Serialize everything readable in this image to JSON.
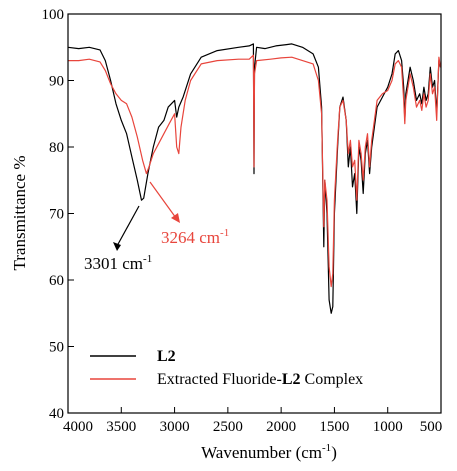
{
  "chart_data": {
    "type": "line",
    "xlabel": "Wavenumber (cm",
    "xlabel_sup": "-1",
    "xlabel_suffix": ")",
    "ylabel": "Transmittance %",
    "xlim": [
      4000,
      500
    ],
    "ylim": [
      40,
      100
    ],
    "x_reversed": true,
    "xticks": [
      4000,
      3500,
      3000,
      2500,
      2000,
      1500,
      1000,
      500
    ],
    "xtick_labels": [
      "4000",
      "3500",
      "3000",
      "2500",
      "2000",
      "1500",
      "1000",
      "500"
    ],
    "yticks": [
      40,
      50,
      60,
      70,
      80,
      90,
      100
    ],
    "ytick_labels": [
      "40",
      "50",
      "60",
      "70",
      "80",
      "90",
      "100"
    ],
    "grid": false,
    "legend_position": "bottom-left",
    "legend": [
      {
        "name_plain": "",
        "name_bold": "L2",
        "name_suffix": "",
        "color": "#000000"
      },
      {
        "name_plain": "Extracted Fluoride-",
        "name_bold": "L2",
        "name_suffix": " Complex",
        "color": "#e8453c"
      }
    ],
    "annotations": [
      {
        "text": "3301 cm",
        "sup": "-1",
        "color": "#000000",
        "point": [
          3301,
          72
        ]
      },
      {
        "text": "3264 cm",
        "sup": "-1",
        "color": "#e8453c",
        "point": [
          3264,
          76
        ]
      }
    ],
    "series": [
      {
        "color": "#000000",
        "points": [
          [
            4000,
            95
          ],
          [
            3900,
            94.8
          ],
          [
            3800,
            95
          ],
          [
            3700,
            94.6
          ],
          [
            3650,
            93
          ],
          [
            3600,
            90
          ],
          [
            3550,
            86.5
          ],
          [
            3500,
            84
          ],
          [
            3450,
            82
          ],
          [
            3400,
            78.5
          ],
          [
            3350,
            75
          ],
          [
            3310,
            72
          ],
          [
            3290,
            72.3
          ],
          [
            3250,
            76
          ],
          [
            3200,
            80
          ],
          [
            3150,
            83
          ],
          [
            3100,
            84
          ],
          [
            3060,
            86
          ],
          [
            3000,
            87
          ],
          [
            2980,
            84.5
          ],
          [
            2960,
            86
          ],
          [
            2920,
            87.5
          ],
          [
            2850,
            91
          ],
          [
            2750,
            93.5
          ],
          [
            2600,
            94.5
          ],
          [
            2400,
            95
          ],
          [
            2300,
            95.2
          ],
          [
            2260,
            95.5
          ],
          [
            2255,
            76
          ],
          [
            2250,
            92
          ],
          [
            2230,
            95
          ],
          [
            2150,
            94.8
          ],
          [
            2050,
            95.2
          ],
          [
            1950,
            95.4
          ],
          [
            1900,
            95.5
          ],
          [
            1800,
            95
          ],
          [
            1700,
            94
          ],
          [
            1650,
            92
          ],
          [
            1620,
            86
          ],
          [
            1600,
            65
          ],
          [
            1590,
            75
          ],
          [
            1570,
            70
          ],
          [
            1550,
            57
          ],
          [
            1530,
            55
          ],
          [
            1515,
            56
          ],
          [
            1500,
            70
          ],
          [
            1470,
            80
          ],
          [
            1450,
            86
          ],
          [
            1420,
            87.5
          ],
          [
            1390,
            84
          ],
          [
            1370,
            77
          ],
          [
            1350,
            80
          ],
          [
            1330,
            74
          ],
          [
            1310,
            76
          ],
          [
            1290,
            70
          ],
          [
            1270,
            80
          ],
          [
            1250,
            78
          ],
          [
            1230,
            73
          ],
          [
            1210,
            79
          ],
          [
            1190,
            81
          ],
          [
            1170,
            76
          ],
          [
            1150,
            80
          ],
          [
            1100,
            86
          ],
          [
            1050,
            87.5
          ],
          [
            1000,
            89
          ],
          [
            960,
            91
          ],
          [
            930,
            94
          ],
          [
            900,
            94.5
          ],
          [
            870,
            93
          ],
          [
            850,
            89
          ],
          [
            840,
            84
          ],
          [
            830,
            88
          ],
          [
            810,
            90
          ],
          [
            790,
            92
          ],
          [
            760,
            90
          ],
          [
            730,
            87
          ],
          [
            700,
            88
          ],
          [
            680,
            86.5
          ],
          [
            660,
            89
          ],
          [
            640,
            87
          ],
          [
            620,
            88
          ],
          [
            600,
            92
          ],
          [
            580,
            89
          ],
          [
            560,
            90
          ],
          [
            540,
            85
          ],
          [
            520,
            93
          ],
          [
            505,
            92
          ]
        ]
      },
      {
        "color": "#e8453c",
        "points": [
          [
            4000,
            93
          ],
          [
            3900,
            93
          ],
          [
            3800,
            93.2
          ],
          [
            3700,
            92.8
          ],
          [
            3650,
            91.5
          ],
          [
            3600,
            89.5
          ],
          [
            3550,
            88
          ],
          [
            3500,
            87
          ],
          [
            3450,
            86.5
          ],
          [
            3400,
            84.5
          ],
          [
            3350,
            81.5
          ],
          [
            3300,
            78
          ],
          [
            3264,
            76
          ],
          [
            3240,
            77
          ],
          [
            3200,
            79
          ],
          [
            3150,
            80.5
          ],
          [
            3100,
            82
          ],
          [
            3050,
            83.5
          ],
          [
            3000,
            85
          ],
          [
            2980,
            80
          ],
          [
            2960,
            79
          ],
          [
            2940,
            83
          ],
          [
            2900,
            87
          ],
          [
            2850,
            90
          ],
          [
            2750,
            92.5
          ],
          [
            2600,
            93
          ],
          [
            2400,
            93.2
          ],
          [
            2300,
            93.2
          ],
          [
            2260,
            93.8
          ],
          [
            2255,
            77
          ],
          [
            2250,
            91
          ],
          [
            2230,
            93
          ],
          [
            2100,
            93.2
          ],
          [
            2000,
            93.4
          ],
          [
            1900,
            93.5
          ],
          [
            1800,
            93
          ],
          [
            1700,
            92.5
          ],
          [
            1650,
            90
          ],
          [
            1620,
            85
          ],
          [
            1600,
            68
          ],
          [
            1590,
            75
          ],
          [
            1570,
            72
          ],
          [
            1550,
            62
          ],
          [
            1530,
            59
          ],
          [
            1515,
            61
          ],
          [
            1500,
            72
          ],
          [
            1470,
            81
          ],
          [
            1450,
            86
          ],
          [
            1420,
            87
          ],
          [
            1390,
            84
          ],
          [
            1370,
            79
          ],
          [
            1350,
            81
          ],
          [
            1330,
            77
          ],
          [
            1310,
            78
          ],
          [
            1290,
            72
          ],
          [
            1270,
            81
          ],
          [
            1250,
            79
          ],
          [
            1230,
            75
          ],
          [
            1210,
            80
          ],
          [
            1190,
            82
          ],
          [
            1170,
            77
          ],
          [
            1150,
            81
          ],
          [
            1100,
            87
          ],
          [
            1050,
            88
          ],
          [
            1000,
            88.5
          ],
          [
            960,
            90
          ],
          [
            930,
            92.5
          ],
          [
            900,
            93
          ],
          [
            870,
            92
          ],
          [
            850,
            87
          ],
          [
            840,
            83.5
          ],
          [
            830,
            87
          ],
          [
            810,
            89
          ],
          [
            790,
            91
          ],
          [
            760,
            89
          ],
          [
            730,
            86
          ],
          [
            700,
            87
          ],
          [
            680,
            85.5
          ],
          [
            660,
            88
          ],
          [
            640,
            86
          ],
          [
            620,
            87
          ],
          [
            600,
            91
          ],
          [
            580,
            88
          ],
          [
            560,
            89
          ],
          [
            540,
            84
          ],
          [
            520,
            93.5
          ],
          [
            505,
            92
          ]
        ]
      }
    ]
  }
}
